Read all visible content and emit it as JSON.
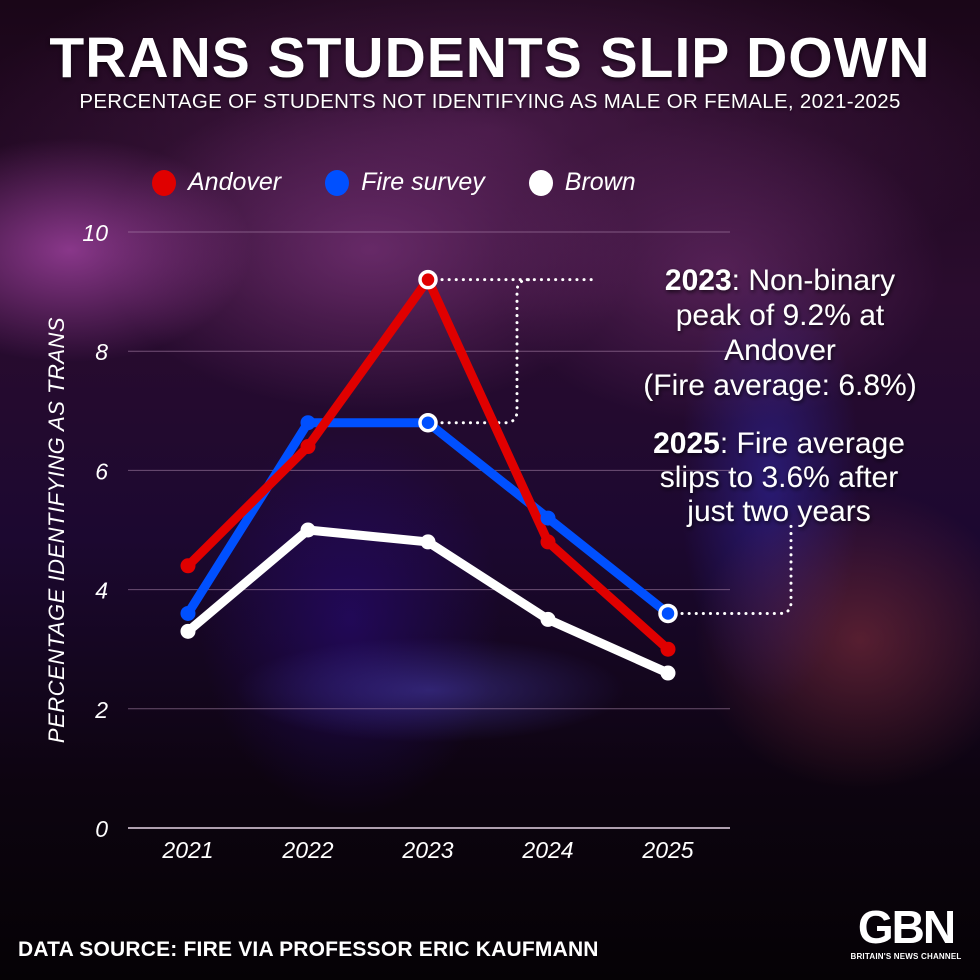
{
  "header": {
    "title": "TRANS STUDENTS SLIP DOWN",
    "subtitle": "PERCENTAGE OF STUDENTS NOT IDENTIFYING AS MALE OR FEMALE, 2021-2025"
  },
  "footer": {
    "source": "DATA SOURCE: FIRE VIA PROFESSOR ERIC KAUFMANN",
    "logo_mark": "GBN",
    "logo_tagline": "BRITAIN'S NEWS CHANNEL"
  },
  "colors": {
    "andover": "#e00000",
    "fire": "#0050ff",
    "brown": "#ffffff",
    "gridline": "#b08ab0"
  },
  "chart_data": {
    "type": "line",
    "title": "TRANS STUDENTS SLIP DOWN",
    "subtitle": "PERCENTAGE OF STUDENTS NOT IDENTIFYING AS MALE OR FEMALE, 2021-2025",
    "xlabel": "",
    "ylabel": "PERCENTAGE IDENTIFYING AS TRANS",
    "x": [
      "2021",
      "2022",
      "2023",
      "2024",
      "2025"
    ],
    "ylim": [
      0,
      10
    ],
    "yticks": [
      0,
      2,
      4,
      6,
      8,
      10
    ],
    "grid": true,
    "legend_position": "top",
    "series": [
      {
        "name": "Andover",
        "color": "#e00000",
        "values": [
          4.4,
          6.4,
          9.2,
          4.8,
          3.0
        ]
      },
      {
        "name": "Fire survey",
        "color": "#0050ff",
        "values": [
          3.6,
          6.8,
          6.8,
          5.2,
          3.6
        ]
      },
      {
        "name": "Brown",
        "color": "#ffffff",
        "values": [
          3.3,
          5.0,
          4.8,
          3.5,
          2.6
        ]
      }
    ],
    "annotations": [
      {
        "bold": "2023",
        "lines": [
          ": Non-binary",
          "peak of 9.2% at",
          "Andover",
          "(Fire average: 6.8%)"
        ],
        "points": [
          {
            "series": "Andover",
            "x": "2023"
          },
          {
            "series": "Fire survey",
            "x": "2023"
          }
        ]
      },
      {
        "bold": "2025",
        "lines": [
          ": Fire average",
          "slips to 3.6% after",
          "just two years"
        ],
        "points": [
          {
            "series": "Fire survey",
            "x": "2025"
          }
        ]
      }
    ]
  }
}
